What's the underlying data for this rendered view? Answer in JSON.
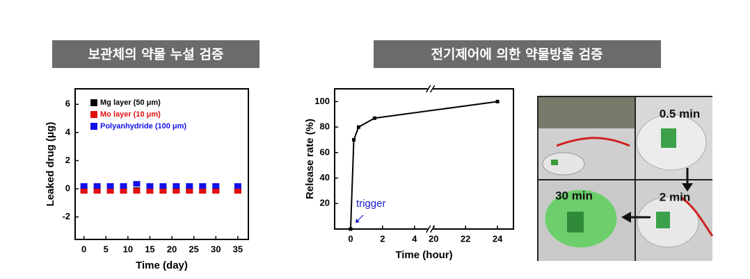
{
  "headers": [
    "보관체의 약물 누설 검증",
    "전기제어에 의한 약물방출 검증"
  ],
  "chart_data": [
    {
      "type": "scatter",
      "x_label": "Time (day)",
      "y_label": "Leaked drug (μg)",
      "x": [
        0,
        3,
        6,
        9,
        12,
        15,
        18,
        21,
        24,
        27,
        30,
        35
      ],
      "series": [
        {
          "name": "Mg layer (50 μm)",
          "color": "#000000",
          "values": [
            -0.1,
            -0.1,
            -0.1,
            -0.1,
            -0.1,
            -0.1,
            -0.1,
            -0.1,
            -0.1,
            -0.1,
            -0.1,
            -0.1
          ]
        },
        {
          "name": "Mo layer (10 μm)",
          "color": "#e01010",
          "values": [
            -0.15,
            -0.15,
            -0.15,
            -0.15,
            -0.15,
            -0.15,
            -0.15,
            -0.15,
            -0.15,
            -0.15,
            -0.15,
            -0.15
          ]
        },
        {
          "name": "Polyanhydride (100 μm)",
          "color": "#1010e8",
          "values": [
            0.2,
            0.2,
            0.2,
            0.2,
            0.35,
            0.2,
            0.2,
            0.2,
            0.2,
            0.2,
            0.2,
            0.2
          ]
        }
      ],
      "xlim": [
        -2,
        37.4
      ],
      "ylim": [
        -3.6,
        7.1
      ],
      "xticks": [
        0,
        5,
        10,
        15,
        20,
        25,
        30,
        35
      ],
      "yticks": [
        -2,
        0,
        2,
        4,
        6
      ],
      "legend": "upper left"
    },
    {
      "type": "line",
      "x_label": "Time (hour)",
      "y_label": "Release rate (%)",
      "x": [
        0,
        0.2,
        0.5,
        1.5,
        24
      ],
      "values": [
        0,
        70,
        80,
        87,
        100
      ],
      "color": "#000000",
      "xlim": [
        -1,
        25
      ],
      "xbreak": [
        5,
        19.8
      ],
      "ylim": [
        0,
        110
      ],
      "xticks": [
        0,
        2,
        4,
        20,
        22,
        24
      ],
      "yticks": [
        20,
        40,
        60,
        80,
        100
      ],
      "annotation": {
        "text": "trigger",
        "color": "#1a1acc"
      }
    }
  ],
  "photo_labels": [
    "0.5 min",
    "2 min",
    "30 min"
  ]
}
